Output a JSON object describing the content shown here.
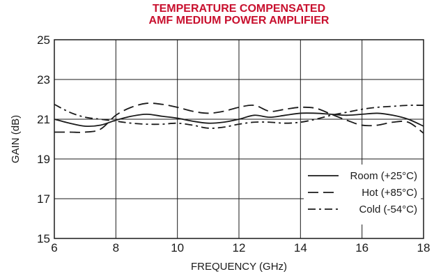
{
  "chart_data": {
    "type": "line",
    "title_lines": [
      "TEMPERATURE COMPENSATED",
      "AMF MEDIUM POWER AMPLIFIER"
    ],
    "xlabel": "FREQUENCY (GHz)",
    "ylabel": "GAIN (dB)",
    "xlim": [
      6,
      18
    ],
    "ylim": [
      15,
      25
    ],
    "x_ticks": [
      6,
      8,
      10,
      12,
      14,
      16,
      18
    ],
    "x_tick_labels": [
      "6",
      "8",
      "10",
      "12",
      "14",
      "16",
      "18"
    ],
    "y_ticks": [
      15,
      17,
      19,
      21,
      23,
      25
    ],
    "y_tick_labels": [
      "15",
      "17",
      "19",
      "21",
      "23",
      "25"
    ],
    "grid": true,
    "legend_position": "bottom-right",
    "colors": {
      "title": "#c8102e",
      "lines": "#1a1a1a",
      "grid": "#1a1a1a"
    },
    "series": [
      {
        "name": "Room (+25°C)",
        "style": "solid",
        "x": [
          6.0,
          6.5,
          7.0,
          7.5,
          8.0,
          8.5,
          9.0,
          9.5,
          10.0,
          10.5,
          11.0,
          11.5,
          12.0,
          12.5,
          13.0,
          13.5,
          14.0,
          14.5,
          15.0,
          15.5,
          16.0,
          16.5,
          17.0,
          17.5,
          18.0
        ],
        "y": [
          21.0,
          20.8,
          20.65,
          20.7,
          20.95,
          21.15,
          21.25,
          21.15,
          21.05,
          20.9,
          20.8,
          20.85,
          21.0,
          21.2,
          21.1,
          21.2,
          21.3,
          21.3,
          21.25,
          21.2,
          21.25,
          21.3,
          21.2,
          21.0,
          20.65
        ]
      },
      {
        "name": "Hot (+85°C)",
        "style": "dashed",
        "x": [
          6.0,
          6.5,
          7.0,
          7.5,
          8.0,
          8.5,
          9.0,
          9.5,
          10.0,
          10.5,
          11.0,
          11.5,
          12.0,
          12.5,
          13.0,
          13.5,
          14.0,
          14.5,
          15.0,
          15.5,
          16.0,
          16.5,
          17.0,
          17.5,
          18.0
        ],
        "y": [
          20.35,
          20.35,
          20.35,
          20.5,
          21.2,
          21.6,
          21.8,
          21.75,
          21.6,
          21.4,
          21.3,
          21.4,
          21.6,
          21.7,
          21.4,
          21.5,
          21.6,
          21.55,
          21.25,
          20.95,
          20.7,
          20.7,
          20.85,
          20.85,
          20.3
        ]
      },
      {
        "name": "Cold (-54°C)",
        "style": "dashdot",
        "x": [
          6.0,
          6.5,
          7.0,
          7.5,
          8.0,
          8.5,
          9.0,
          9.5,
          10.0,
          10.5,
          11.0,
          11.5,
          12.0,
          12.5,
          13.0,
          13.5,
          14.0,
          14.5,
          15.0,
          15.5,
          16.0,
          16.5,
          17.0,
          17.5,
          18.0
        ],
        "y": [
          21.75,
          21.35,
          21.1,
          21.0,
          20.9,
          20.8,
          20.75,
          20.75,
          20.8,
          20.7,
          20.55,
          20.6,
          20.75,
          20.85,
          20.85,
          20.8,
          20.85,
          21.0,
          21.2,
          21.35,
          21.5,
          21.6,
          21.65,
          21.7,
          21.7
        ]
      }
    ]
  }
}
